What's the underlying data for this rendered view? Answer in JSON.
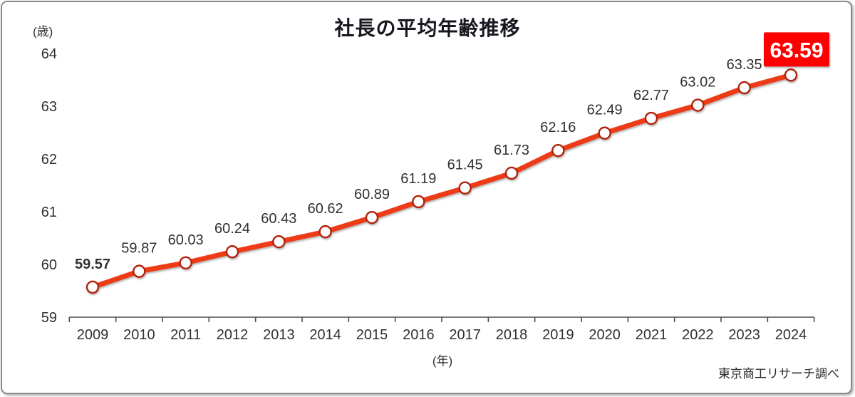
{
  "chart_data": {
    "type": "line",
    "title": "社長の平均年齢推移",
    "ylabel": "(歳)",
    "xlabel": "(年)",
    "source": "東京商工リサーチ調べ",
    "categories": [
      "2009",
      "2010",
      "2011",
      "2012",
      "2013",
      "2014",
      "2015",
      "2016",
      "2017",
      "2018",
      "2019",
      "2020",
      "2021",
      "2022",
      "2023",
      "2024"
    ],
    "values": [
      59.57,
      59.87,
      60.03,
      60.24,
      60.43,
      60.62,
      60.89,
      61.19,
      61.45,
      61.73,
      62.16,
      62.49,
      62.77,
      63.02,
      63.35,
      63.59
    ],
    "data_labels": [
      "59.57",
      "59.87",
      "60.03",
      "60.24",
      "60.43",
      "60.62",
      "60.89",
      "61.19",
      "61.45",
      "61.73",
      "62.16",
      "62.49",
      "62.77",
      "63.02",
      "63.35",
      "63.59"
    ],
    "ylim": [
      59,
      64
    ],
    "yticks": [
      59,
      60,
      61,
      62,
      63,
      64
    ],
    "grid": false,
    "legend": false,
    "first_label_bold": true,
    "last_value_badge": "63.59",
    "colors": {
      "line": "#ec3a13",
      "marker_fill": "#ffffff",
      "marker_stroke": "#b02408",
      "badge_bg": "#fe0000",
      "badge_text": "#ffffff",
      "label_text": "#303030",
      "axis": "#4d4d4d",
      "title_text": "#17171f"
    }
  }
}
